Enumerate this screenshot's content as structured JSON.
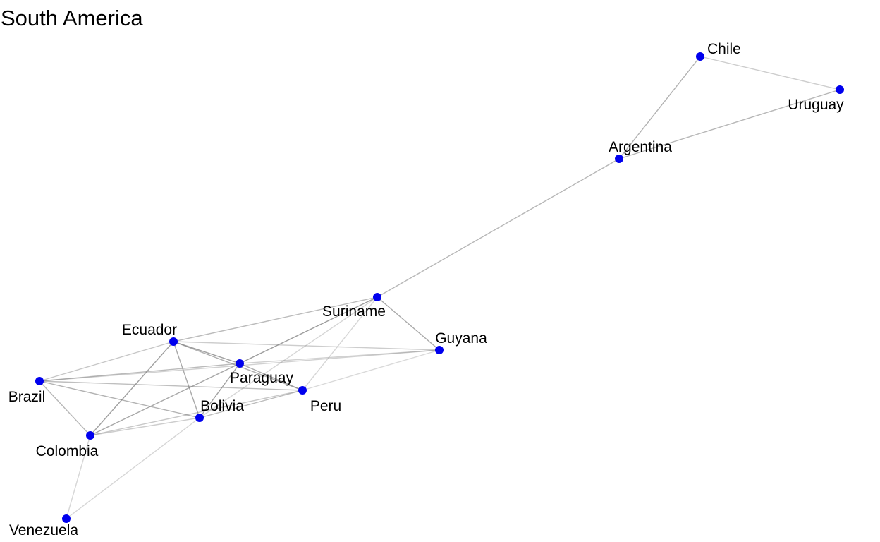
{
  "diagram": {
    "title": "South America",
    "node_color": "#0000ee",
    "edge_color": "#808080",
    "nodes": [
      {
        "id": "chile",
        "label": "Chile"
      },
      {
        "id": "uruguay",
        "label": "Uruguay"
      },
      {
        "id": "argentina",
        "label": "Argentina"
      },
      {
        "id": "suriname",
        "label": "Suriname"
      },
      {
        "id": "guyana",
        "label": "Guyana"
      },
      {
        "id": "ecuador",
        "label": "Ecuador"
      },
      {
        "id": "paraguay",
        "label": "Paraguay"
      },
      {
        "id": "brazil",
        "label": "Brazil"
      },
      {
        "id": "peru",
        "label": "Peru"
      },
      {
        "id": "bolivia",
        "label": "Bolivia"
      },
      {
        "id": "colombia",
        "label": "Colombia"
      },
      {
        "id": "venezuela",
        "label": "Venezuela"
      }
    ],
    "edges": [
      {
        "source": "chile",
        "target": "uruguay",
        "strength": 0.35
      },
      {
        "source": "chile",
        "target": "argentina",
        "strength": 0.65
      },
      {
        "source": "uruguay",
        "target": "argentina",
        "strength": 0.6
      },
      {
        "source": "argentina",
        "target": "suriname",
        "strength": 0.6
      },
      {
        "source": "suriname",
        "target": "guyana",
        "strength": 0.75
      },
      {
        "source": "suriname",
        "target": "ecuador",
        "strength": 0.55
      },
      {
        "source": "suriname",
        "target": "paraguay",
        "strength": 0.7
      },
      {
        "source": "suriname",
        "target": "colombia",
        "strength": 0.3
      },
      {
        "source": "suriname",
        "target": "bolivia",
        "strength": 0.25
      },
      {
        "source": "ecuador",
        "target": "guyana",
        "strength": 0.35
      },
      {
        "source": "ecuador",
        "target": "paraguay",
        "strength": 0.85
      },
      {
        "source": "ecuador",
        "target": "peru",
        "strength": 0.7
      },
      {
        "source": "ecuador",
        "target": "bolivia",
        "strength": 0.75
      },
      {
        "source": "ecuador",
        "target": "colombia",
        "strength": 0.85
      },
      {
        "source": "ecuador",
        "target": "brazil",
        "strength": 0.4
      },
      {
        "source": "brazil",
        "target": "paraguay",
        "strength": 0.55
      },
      {
        "source": "brazil",
        "target": "peru",
        "strength": 0.5
      },
      {
        "source": "brazil",
        "target": "bolivia",
        "strength": 0.65
      },
      {
        "source": "brazil",
        "target": "colombia",
        "strength": 0.6
      },
      {
        "source": "brazil",
        "target": "guyana",
        "strength": 0.3
      },
      {
        "source": "paraguay",
        "target": "guyana",
        "strength": 0.3
      },
      {
        "source": "paraguay",
        "target": "peru",
        "strength": 0.7
      },
      {
        "source": "paraguay",
        "target": "bolivia",
        "strength": 0.85
      },
      {
        "source": "paraguay",
        "target": "colombia",
        "strength": 0.5
      },
      {
        "source": "peru",
        "target": "bolivia",
        "strength": 0.55
      },
      {
        "source": "peru",
        "target": "colombia",
        "strength": 0.4
      },
      {
        "source": "peru",
        "target": "suriname",
        "strength": 0.25
      },
      {
        "source": "bolivia",
        "target": "colombia",
        "strength": 0.35
      },
      {
        "source": "bolivia",
        "target": "venezuela",
        "strength": 0.25
      },
      {
        "source": "colombia",
        "target": "venezuela",
        "strength": 0.25
      },
      {
        "source": "guyana",
        "target": "peru",
        "strength": 0.2
      }
    ]
  }
}
